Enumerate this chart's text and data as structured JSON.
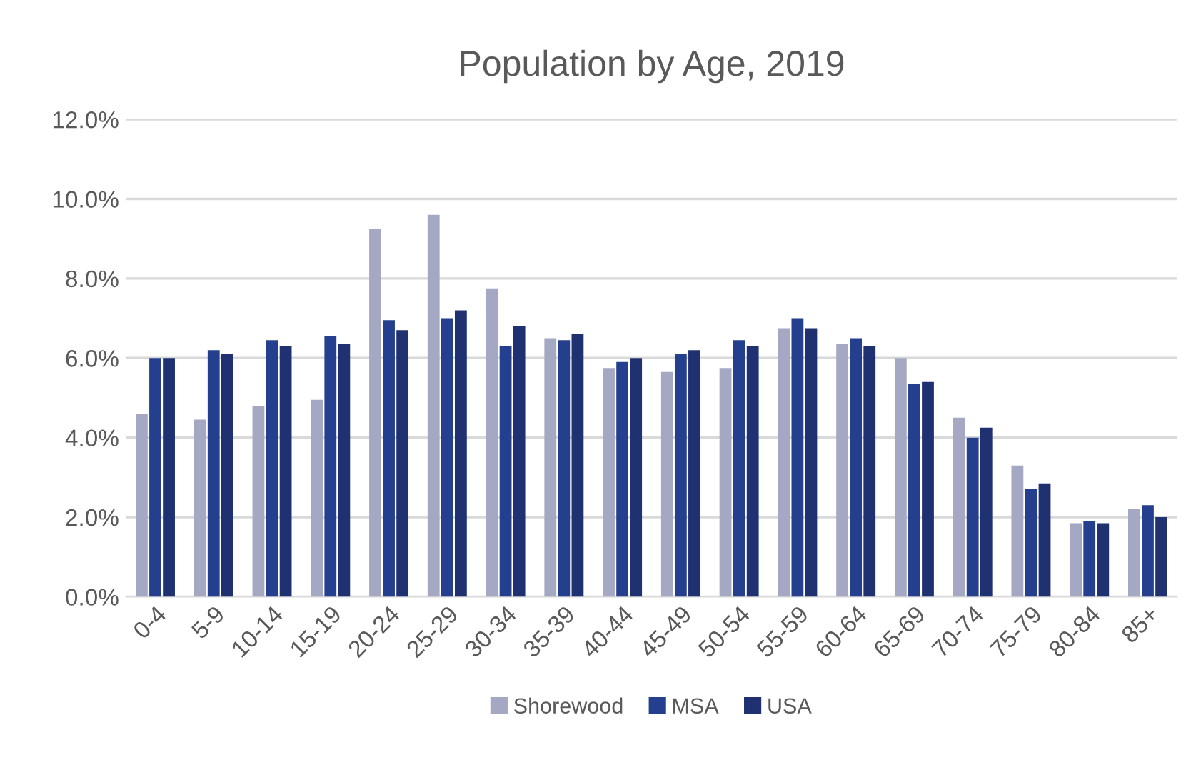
{
  "chart_data": {
    "type": "bar",
    "title": "Population by Age, 2019",
    "categories": [
      "0-4",
      "5-9",
      "10-14",
      "15-19",
      "20-24",
      "25-29",
      "30-34",
      "35-39",
      "40-44",
      "45-49",
      "50-54",
      "55-59",
      "60-64",
      "65-69",
      "70-74",
      "75-79",
      "80-84",
      "85+"
    ],
    "series": [
      {
        "name": "Shorewood",
        "color": "#a5a8c2",
        "values": [
          4.6,
          4.45,
          4.8,
          4.95,
          9.25,
          9.6,
          7.75,
          6.5,
          5.75,
          5.65,
          5.75,
          6.75,
          6.35,
          6.0,
          4.5,
          3.3,
          1.85,
          2.2
        ]
      },
      {
        "name": "MSA",
        "color": "#253f8f",
        "values": [
          6.0,
          6.2,
          6.45,
          6.55,
          6.95,
          7.0,
          6.3,
          6.45,
          5.9,
          6.1,
          6.45,
          7.0,
          6.5,
          5.35,
          4.0,
          2.7,
          1.9,
          2.3
        ]
      },
      {
        "name": "USA",
        "color": "#1f3170",
        "values": [
          6.0,
          6.1,
          6.3,
          6.35,
          6.7,
          7.2,
          6.8,
          6.6,
          6.0,
          6.2,
          6.3,
          6.75,
          6.3,
          5.4,
          4.25,
          2.85,
          1.85,
          2.0
        ]
      }
    ],
    "ylim": [
      0,
      12
    ],
    "yticks": [
      {
        "value": 0,
        "label": "0.0%"
      },
      {
        "value": 2,
        "label": "2.0%"
      },
      {
        "value": 4,
        "label": "4.0%"
      },
      {
        "value": 6,
        "label": "6.0%"
      },
      {
        "value": 8,
        "label": "8.0%"
      },
      {
        "value": 10,
        "label": "10.0%"
      },
      {
        "value": 12,
        "label": "12.0%"
      }
    ],
    "grid": "y",
    "legend": "bottom"
  }
}
